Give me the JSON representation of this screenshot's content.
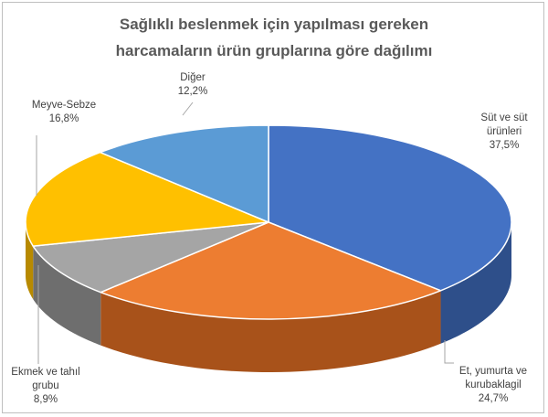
{
  "chart_data": {
    "type": "pie",
    "title_lines": [
      "Sağlıklı beslenmek için yapılması gereken",
      "harcamaların ürün gruplarına göre dağılımı"
    ],
    "slices": [
      {
        "label_lines": [
          "Süt ve süt",
          "ürünleri"
        ],
        "value": 37.5,
        "value_label": "37,5%",
        "color": "#4472C4",
        "side_color": "#2E4F8A"
      },
      {
        "label_lines": [
          "Et, yumurta ve",
          "kurubaklagil"
        ],
        "value": 24.7,
        "value_label": "24,7%",
        "color": "#ED7D31",
        "side_color": "#A8521A"
      },
      {
        "label_lines": [
          "Ekmek ve tahıl",
          "grubu"
        ],
        "value": 8.9,
        "value_label": "8,9%",
        "color": "#A5A5A5",
        "side_color": "#6E6E6E"
      },
      {
        "label_lines": [
          "Meyve-Sebze"
        ],
        "value": 16.8,
        "value_label": "16,8%",
        "color": "#FFC000",
        "side_color": "#B88A00"
      },
      {
        "label_lines": [
          "Diğer"
        ],
        "value": 12.2,
        "value_label": "12,2%",
        "color": "#5B9BD5",
        "side_color": "#3A6F9E"
      }
    ],
    "start": "top",
    "direction": "clockwise",
    "style": "3d"
  }
}
